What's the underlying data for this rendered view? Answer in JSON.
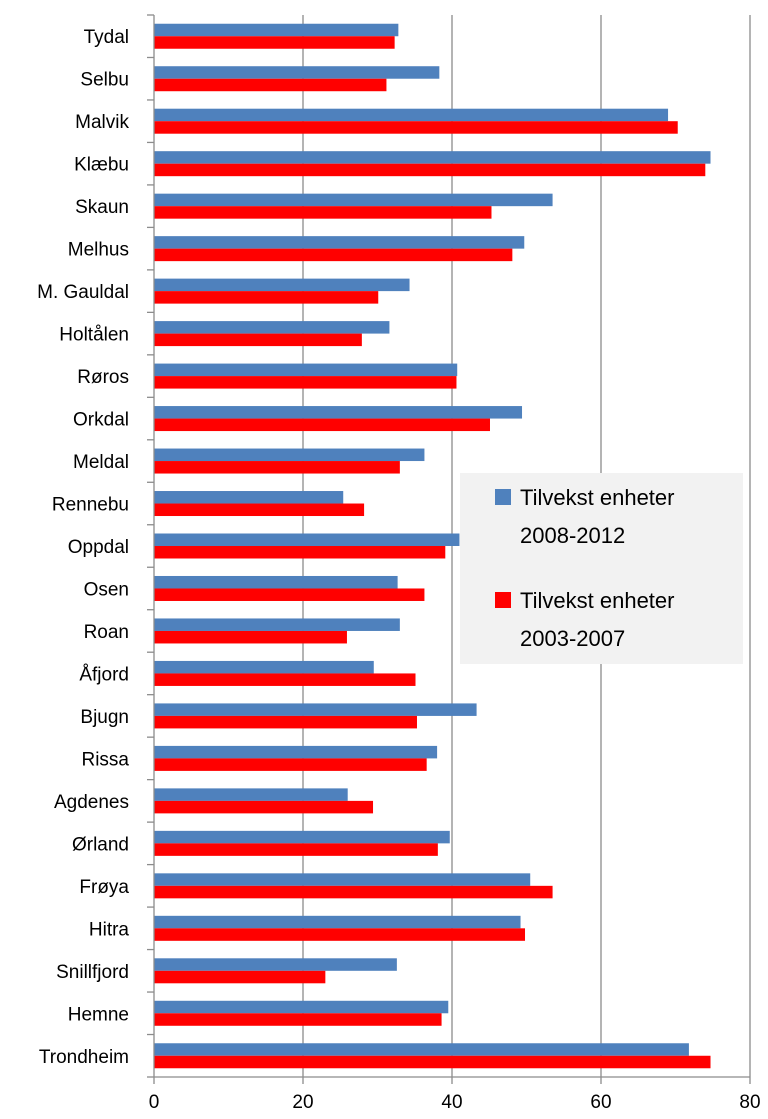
{
  "chart_data": {
    "type": "bar",
    "orientation": "horizontal",
    "categories": [
      "Tydal",
      "Selbu",
      "Malvik",
      "Klæbu",
      "Skaun",
      "Melhus",
      "M. Gauldal",
      "Holtålen",
      "Røros",
      "Orkdal",
      "Meldal",
      "Rennebu",
      "Oppdal",
      "Osen",
      "Roan",
      "Åfjord",
      "Bjugn",
      "Rissa",
      "Agdenes",
      "Ørland",
      "Frøya",
      "Hitra",
      "Snillfjord",
      "Hemne",
      "Trondheim"
    ],
    "series": [
      {
        "name": "Tilvekst enheter 2008-2012",
        "color": "#4f81bd",
        "values": [
          32.8,
          38.3,
          69.0,
          74.7,
          53.5,
          49.7,
          34.3,
          31.6,
          40.7,
          49.4,
          36.3,
          25.4,
          41.0,
          32.7,
          33.0,
          29.5,
          43.3,
          38.0,
          26.0,
          39.7,
          50.5,
          49.2,
          32.6,
          39.5,
          71.8
        ]
      },
      {
        "name": "Tilvekst enheter 2003-2007",
        "color": "#ff0000",
        "values": [
          32.3,
          31.2,
          70.3,
          74.0,
          45.3,
          48.1,
          30.1,
          27.9,
          40.6,
          45.1,
          33.0,
          28.2,
          39.1,
          36.3,
          25.9,
          35.1,
          35.3,
          36.6,
          29.4,
          38.1,
          53.5,
          49.8,
          23.0,
          38.6,
          74.7
        ]
      }
    ],
    "x_ticks": [
      "0",
      "20",
      "40",
      "60",
      "80"
    ],
    "xlim": [
      0,
      80
    ],
    "grid": "vertical major gridlines",
    "legend": {
      "position": "right-middle",
      "entries": [
        {
          "lines": [
            "Tilvekst enheter",
            "2008-2012"
          ],
          "color": "#4f81bd"
        },
        {
          "lines": [
            "Tilvekst enheter",
            "2003-2007"
          ],
          "color": "#ff0000"
        }
      ]
    }
  }
}
